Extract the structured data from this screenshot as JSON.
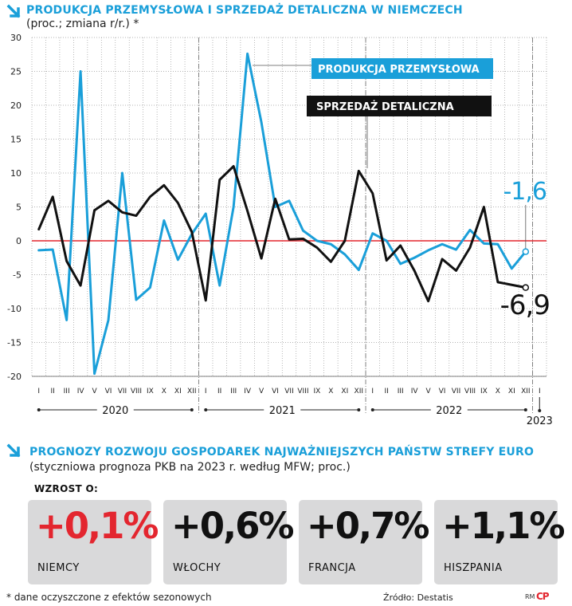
{
  "header": {
    "title": "PRODUKCJA PRZEMYSŁOWA I SPRZEDAŻ DETALICZNA W NIEMCZECH",
    "subtitle": "(proc.; zmiana r/r.) *"
  },
  "chart_data": {
    "type": "line",
    "ylim": [
      -20,
      30
    ],
    "yticks": [
      "30",
      "25",
      "20",
      "15",
      "10",
      "5",
      "0",
      "-5",
      "-10",
      "-15",
      "-20"
    ],
    "month_labels": [
      "I",
      "II",
      "III",
      "IV",
      "V",
      "VI",
      "VII",
      "VIII",
      "IX",
      "X",
      "XI",
      "XII",
      "I",
      "II",
      "III",
      "IV",
      "V",
      "VI",
      "VII",
      "VIII",
      "IX",
      "X",
      "XI",
      "XII",
      "I",
      "II",
      "III",
      "IV",
      "V",
      "VI",
      "VII",
      "VIII",
      "IX",
      "X",
      "XI",
      "XII",
      "I"
    ],
    "year_labels": [
      "2020",
      "2021",
      "2022",
      "2023"
    ],
    "series": [
      {
        "name": "PRODUKCJA PRZEMYSŁOWA",
        "color": "#1a9fd9",
        "values": [
          -1.4,
          -1.3,
          -11.7,
          25.0,
          -19.6,
          -11.7,
          10.0,
          -8.7,
          -6.9,
          3.0,
          -2.8,
          1.0,
          4.0,
          -6.6,
          5.0,
          27.6,
          17.5,
          5.0,
          5.9,
          1.5,
          0.0,
          -0.5,
          -2.0,
          -4.3,
          1.1,
          0.0,
          -3.4,
          -2.5,
          -1.4,
          -0.5,
          -1.3,
          1.6,
          -0.4,
          -0.5,
          -4.1,
          -1.6
        ],
        "last_label": "-1,6"
      },
      {
        "name": "SPRZEDAŻ DETALICZNA",
        "color": "#111111",
        "values": [
          1.7,
          6.5,
          -3.0,
          -6.6,
          4.5,
          5.9,
          4.2,
          3.7,
          6.5,
          8.2,
          5.6,
          1.3,
          -8.8,
          9.0,
          11.0,
          4.4,
          -2.6,
          6.2,
          0.2,
          0.3,
          -1.0,
          -3.1,
          0.0,
          10.3,
          7.0,
          -2.9,
          -0.7,
          -4.4,
          -8.9,
          -2.7,
          -4.4,
          -1.0,
          5.0,
          -6.1,
          -6.5,
          -6.9
        ],
        "last_label": "-6,9"
      }
    ]
  },
  "forecast": {
    "title": "PROGNOZY ROZWOJU GOSPODAREK NAJWAŻNIEJSZYCH PAŃSTW STREFY EURO",
    "subtitle": "(styczniowa prognoza PKB na 2023 r. według MFW; proc.)",
    "growth_label": "WZROST O:",
    "cards": [
      {
        "value": "+0,1%",
        "country": "NIEMCY",
        "color": "#e3262f"
      },
      {
        "value": "+0,6%",
        "country": "WŁOCHY",
        "color": "#111111"
      },
      {
        "value": "+0,7%",
        "country": "FRANCJA",
        "color": "#111111"
      },
      {
        "value": "+1,1%",
        "country": "HISZPANIA",
        "color": "#111111"
      }
    ]
  },
  "footer": {
    "footnote": "* dane oczyszczone z efektów sezonowych",
    "source": "Źródło: Destatis",
    "credit": "RM",
    "logo_text": "CP"
  }
}
